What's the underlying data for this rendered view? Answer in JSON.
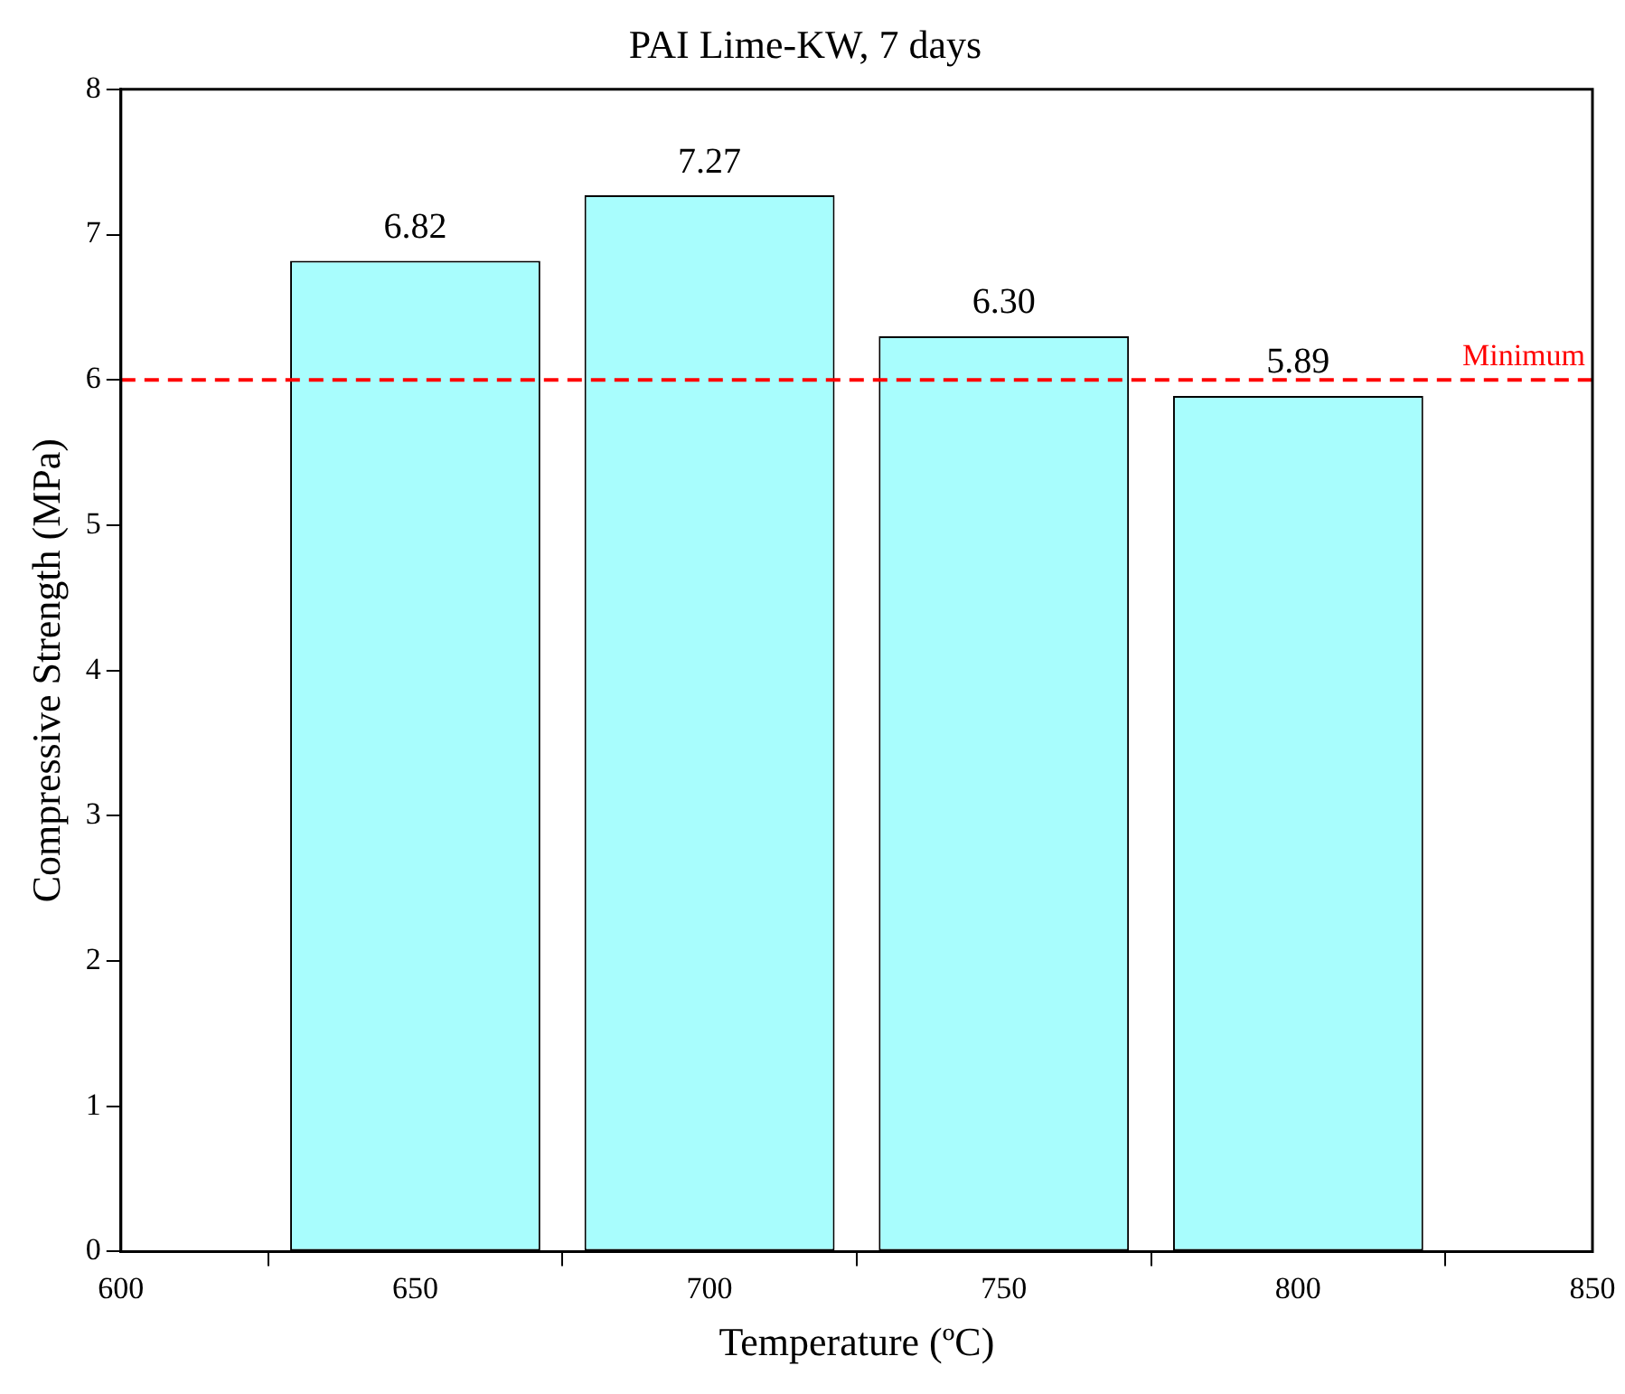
{
  "chart_data": {
    "type": "bar",
    "title": "PAI Lime-KW, 7 days",
    "xlabel": "Temperature (ºC)",
    "ylabel": "Compressive Strength (MPa)",
    "x": [
      650,
      700,
      750,
      800
    ],
    "values": [
      6.82,
      7.27,
      6.3,
      5.89
    ],
    "value_labels": [
      "6.82",
      "7.27",
      "6.30",
      "5.89"
    ],
    "color": "#a8fdfd",
    "xlim": [
      600,
      850
    ],
    "xticks": [
      600,
      650,
      700,
      750,
      800,
      850
    ],
    "ylim": [
      0,
      8
    ],
    "yticks": [
      0,
      1,
      2,
      3,
      4,
      5,
      6,
      7,
      8
    ],
    "ref_lines": [
      {
        "axis": "y",
        "value": 6,
        "label": "Minimum",
        "color": "#ff0000",
        "line_style": "dashed"
      }
    ],
    "grid": false,
    "legend": false
  }
}
